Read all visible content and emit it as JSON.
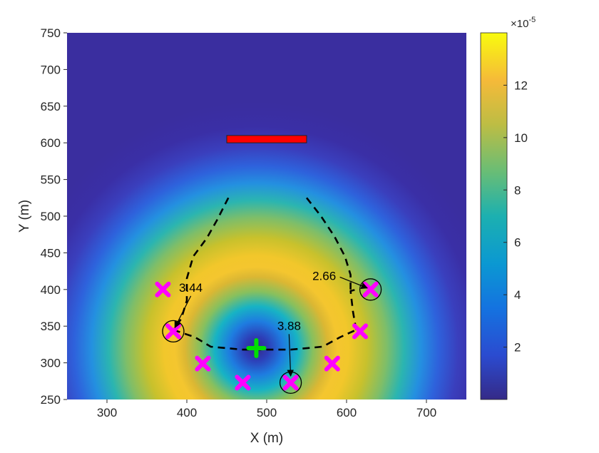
{
  "chart_data": {
    "type": "heatmap",
    "title": "",
    "xlabel": "X (m)",
    "ylabel": "Y (m)",
    "xlim": [
      250,
      750
    ],
    "ylim": [
      250,
      750
    ],
    "xticks": [
      300,
      400,
      500,
      600,
      700
    ],
    "yticks": [
      250,
      300,
      350,
      400,
      450,
      500,
      550,
      600,
      650,
      700,
      750
    ],
    "colorbar": {
      "exponent_label": "×10",
      "exponent_power": "-5",
      "ticks": [
        2,
        4,
        6,
        8,
        10,
        12
      ],
      "range": [
        0,
        14
      ],
      "colormap": "parula"
    },
    "field": {
      "center": [
        487,
        320
      ],
      "description_values": "radial field peaking near 13.5e-5 on a ring about 90 m from the center, near zero at the center and beyond 300 m"
    },
    "obstacle": {
      "x": [
        450,
        550
      ],
      "y": [
        600,
        610
      ],
      "color": "#ff0000"
    },
    "center_marker": {
      "x": 487,
      "y": 320,
      "color": "#00e000",
      "marker": "plus"
    },
    "x_markers": {
      "color": "#ff00ff",
      "points": [
        [
          370,
          400
        ],
        [
          383,
          343
        ],
        [
          420,
          299
        ],
        [
          470,
          273
        ],
        [
          530,
          273
        ],
        [
          582,
          299
        ],
        [
          617,
          343
        ],
        [
          630,
          400
        ]
      ]
    },
    "circled_markers": [
      [
        383,
        343
      ],
      [
        530,
        273
      ],
      [
        630,
        400
      ]
    ],
    "dashed_paths": [
      {
        "points": [
          [
            452,
            525
          ],
          [
            438,
            495
          ],
          [
            425,
            470
          ],
          [
            408,
            445
          ],
          [
            400,
            415
          ],
          [
            400,
            385
          ],
          [
            393,
            360
          ],
          [
            383,
            345
          ]
        ]
      },
      {
        "points": [
          [
            383,
            345
          ],
          [
            410,
            335
          ],
          [
            430,
            322
          ],
          [
            470,
            318
          ],
          [
            530,
            318
          ],
          [
            570,
            322
          ],
          [
            592,
            335
          ],
          [
            612,
            345
          ]
        ]
      },
      {
        "points": [
          [
            612,
            345
          ],
          [
            608,
            370
          ],
          [
            605,
            398
          ],
          [
            612,
            400
          ]
        ]
      },
      {
        "points": [
          [
            550,
            525
          ],
          [
            568,
            500
          ],
          [
            585,
            472
          ],
          [
            598,
            445
          ],
          [
            605,
            420
          ],
          [
            605,
            400
          ]
        ]
      }
    ],
    "annotations": [
      {
        "text": "3.44",
        "text_pos": [
          405,
          397
        ],
        "arrow_to": [
          385,
          348
        ]
      },
      {
        "text": "3.88",
        "text_pos": [
          528,
          345
        ],
        "arrow_to": [
          530,
          282
        ]
      },
      {
        "text": "2.66",
        "text_pos": [
          572,
          413
        ],
        "arrow_to": [
          626,
          402
        ]
      }
    ]
  }
}
